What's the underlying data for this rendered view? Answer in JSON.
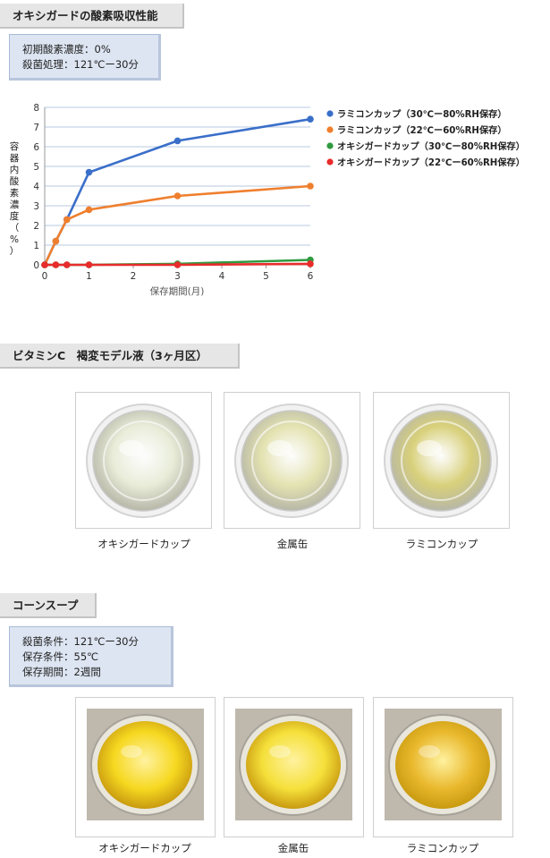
{
  "section1": {
    "title": "オキシガードの酸素吸収性能",
    "info": [
      "初期酸素濃度：0%",
      "殺菌処理：121℃ー30分"
    ]
  },
  "chart_data": {
    "type": "line",
    "title": "",
    "xlabel": "保存期間(月)",
    "ylabel": "容器内酸素濃度（%）",
    "xlim": [
      0,
      6
    ],
    "ylim": [
      0,
      8
    ],
    "xticks": [
      0,
      1,
      2,
      3,
      4,
      5,
      6
    ],
    "yticks": [
      0,
      1,
      2,
      3,
      4,
      5,
      6,
      7,
      8
    ],
    "grid": "horizontal",
    "legend_position": "right",
    "series": [
      {
        "name": "ラミコンカップ（30℃ー80%RH保存）",
        "color": "#3a6fc9",
        "x": [
          0,
          0.25,
          0.5,
          1,
          3,
          6
        ],
        "y": [
          0,
          1.2,
          2.3,
          4.7,
          6.3,
          7.4
        ]
      },
      {
        "name": "ラミコンカップ（22℃ー60%RH保存）",
        "color": "#ef7f2e",
        "x": [
          0,
          0.25,
          0.5,
          1,
          3,
          6
        ],
        "y": [
          0,
          1.2,
          2.3,
          2.8,
          3.5,
          4.0
        ]
      },
      {
        "name": "オキシガードカップ（30℃ー80%RH保存）",
        "color": "#2f9a3f",
        "x": [
          0,
          0.25,
          0.5,
          1,
          3,
          6
        ],
        "y": [
          0,
          0,
          0,
          0,
          0.05,
          0.25
        ]
      },
      {
        "name": "オキシガードカップ（22℃ー60%RH保存）",
        "color": "#e82c2c",
        "x": [
          0,
          0.25,
          0.5,
          1,
          3,
          6
        ],
        "y": [
          0,
          0,
          0,
          0,
          0,
          0.05
        ]
      }
    ]
  },
  "section2": {
    "title": "ビタミンC　褐変モデル液（3ヶ月区）",
    "photos": [
      {
        "caption": "オキシガードカップ",
        "liquid": "#e8ecd8"
      },
      {
        "caption": "金属缶",
        "liquid": "#e3e2b0"
      },
      {
        "caption": "ラミコンカップ",
        "liquid": "#d8d07a"
      }
    ]
  },
  "section3": {
    "title": "コーンスープ",
    "info": [
      "殺菌条件：121℃ー30分",
      "保存条件：55℃",
      "保存期間：2週間"
    ],
    "photos": [
      {
        "caption": "オキシガードカップ",
        "soup": "#f6d820"
      },
      {
        "caption": "金属缶",
        "soup": "#f5e03a"
      },
      {
        "caption": "ラミコンカップ",
        "soup": "#e9b82c"
      }
    ]
  }
}
